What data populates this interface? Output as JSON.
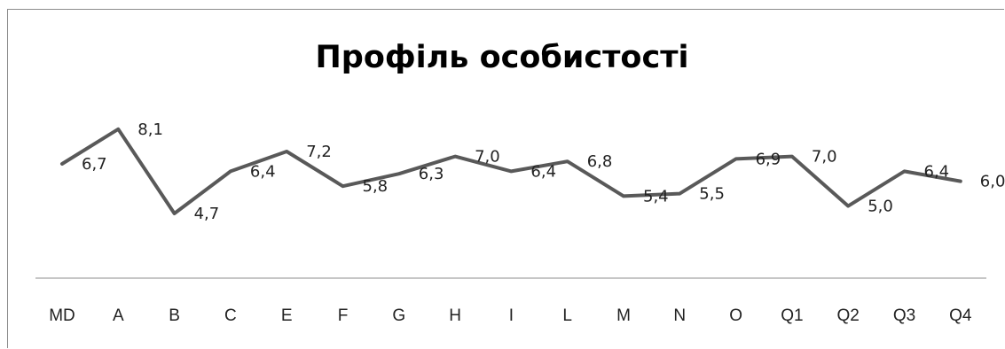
{
  "chart_data": {
    "type": "line",
    "title": "Профіль особистості",
    "categories": [
      "MD",
      "A",
      "B",
      "C",
      "E",
      "F",
      "G",
      "H",
      "I",
      "L",
      "M",
      "N",
      "O",
      "Q1",
      "Q2",
      "Q3",
      "Q4"
    ],
    "series": [
      {
        "values": [
          6.7,
          8.1,
          4.7,
          6.4,
          7.2,
          5.8,
          6.3,
          7.0,
          6.4,
          6.8,
          5.4,
          5.5,
          6.9,
          7.0,
          5.0,
          6.4,
          6.0
        ]
      }
    ],
    "data_labels": [
      "6,7",
      "8,1",
      "4,7",
      "6,4",
      "7,2",
      "5,8",
      "6,3",
      "7,0",
      "6,4",
      "6,8",
      "5,4",
      "5,5",
      "6,9",
      "7,0",
      "5,0",
      "6,4",
      "6,0"
    ],
    "line_color": "#595959",
    "axis_color": "#8c8c8c",
    "grid": false,
    "legend": "none"
  }
}
